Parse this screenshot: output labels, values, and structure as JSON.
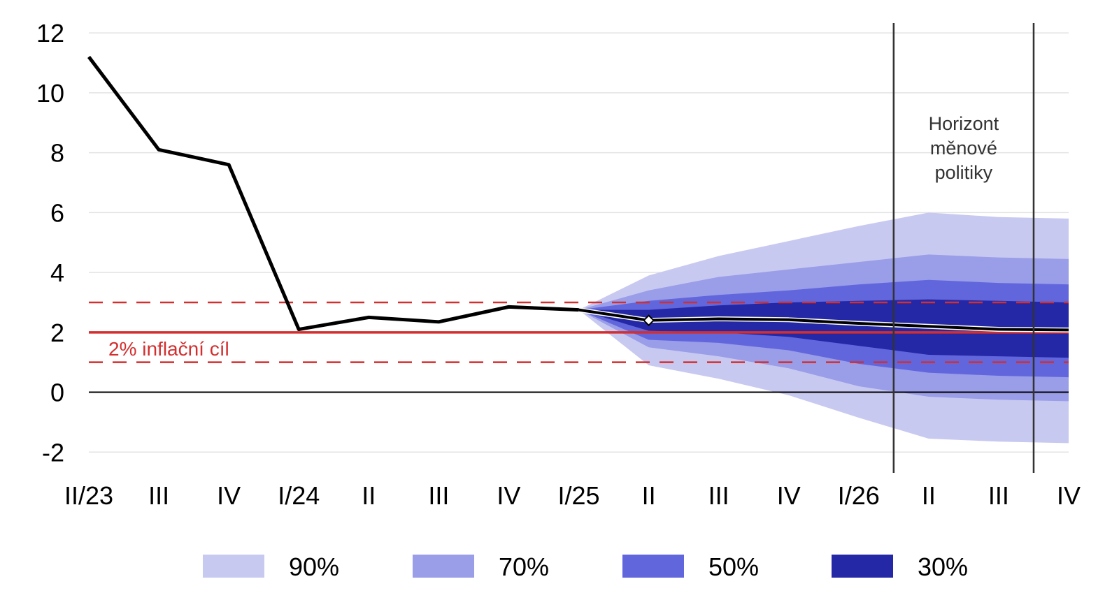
{
  "chart_data": {
    "type": "area",
    "title": "",
    "xlabel": "",
    "ylabel": "",
    "x_tick_labels": [
      "II/23",
      "III",
      "IV",
      "I/24",
      "II",
      "III",
      "IV",
      "I/25",
      "II",
      "III",
      "IV",
      "I/26",
      "II",
      "III",
      "IV"
    ],
    "ylim": [
      -2.6,
      12.4
    ],
    "y_ticks": [
      "-2",
      "0",
      "2",
      "4",
      "6",
      "8",
      "10",
      "12"
    ],
    "grid": true,
    "series": [
      {
        "name": "",
        "type": "line",
        "values": [
          11.2,
          8.1,
          7.6,
          2.1,
          2.5,
          2.35,
          2.85,
          2.75,
          2.4,
          2.45,
          2.42,
          2.3,
          2.2,
          2.1,
          2.08
        ]
      }
    ],
    "fan_bands": [
      {
        "name": "90%",
        "color": "#c8c9f0",
        "start_index": 7,
        "lower": [
          2.75,
          0.9,
          0.45,
          -0.1,
          -0.85,
          -1.55,
          -1.65,
          -1.7
        ],
        "upper": [
          2.75,
          3.9,
          4.55,
          5.05,
          5.55,
          6.0,
          5.85,
          5.8
        ]
      },
      {
        "name": "70%",
        "color": "#9a9de8",
        "start_index": 7,
        "lower": [
          2.75,
          1.5,
          1.2,
          0.8,
          0.2,
          -0.15,
          -0.25,
          -0.3
        ],
        "upper": [
          2.75,
          3.4,
          3.85,
          4.1,
          4.35,
          4.6,
          4.5,
          4.45
        ]
      },
      {
        "name": "50%",
        "color": "#6266dc",
        "start_index": 7,
        "lower": [
          2.75,
          1.75,
          1.65,
          1.4,
          0.95,
          0.65,
          0.55,
          0.5
        ],
        "upper": [
          2.75,
          3.05,
          3.25,
          3.4,
          3.6,
          3.75,
          3.65,
          3.6
        ]
      },
      {
        "name": "30%",
        "color": "#2428a6",
        "start_index": 7,
        "lower": [
          2.75,
          2.05,
          2.0,
          1.85,
          1.55,
          1.25,
          1.2,
          1.15
        ],
        "upper": [
          2.75,
          2.75,
          2.9,
          3.0,
          3.05,
          3.1,
          3.05,
          3.0
        ]
      }
    ],
    "target": {
      "value": 2,
      "lower": 1,
      "upper": 3,
      "label": "2% inflační cíl",
      "color": "#d32f2f"
    },
    "forecast_marker_index": 8,
    "policy_horizon": {
      "label_lines": [
        "Horizont",
        "měnové",
        "politiky"
      ],
      "from_x": 11.5,
      "to_x": 13.5
    },
    "legend": {
      "position": "bottom",
      "entries": [
        {
          "label": "90%",
          "color": "#c8c9f0"
        },
        {
          "label": "70%",
          "color": "#9a9de8"
        },
        {
          "label": "50%",
          "color": "#6266dc"
        },
        {
          "label": "30%",
          "color": "#2428a6"
        }
      ]
    }
  }
}
